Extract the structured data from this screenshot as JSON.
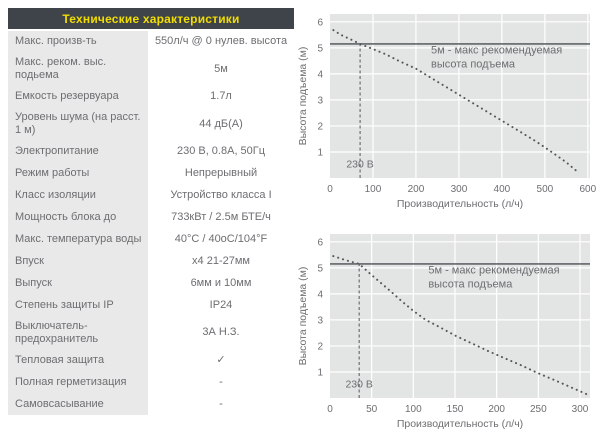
{
  "table": {
    "title": "Технические характеристики",
    "rows": [
      {
        "label": "Макс. произв-ть",
        "value": "550л/ч @ 0 нулев. высота"
      },
      {
        "label": "Макс. реком. выс. подьема",
        "value": "5м"
      },
      {
        "label": "Емкость резервуара",
        "value": "1.7л"
      },
      {
        "label": "Уровень шума (на расст. 1 м)",
        "value": "44 дБ(А)"
      },
      {
        "label": "Электропитание",
        "value": "230 В, 0.8А, 50Гц"
      },
      {
        "label": "Режим работы",
        "value": "Непрерывный"
      },
      {
        "label": "Класс изоляции",
        "value": "Устройство класса I"
      },
      {
        "label": "Мощность блока до",
        "value": "733кВт / 2.5м БТЕ/ч"
      },
      {
        "label": "Макс. температура воды",
        "value": "40°C / 40oC/104°F"
      },
      {
        "label": "Впуск",
        "value": "х4 21-27мм"
      },
      {
        "label": "Выпуск",
        "value": "6мм и 10мм"
      },
      {
        "label": "Степень защиты IP",
        "value": "IP24"
      },
      {
        "label": "Выключатель-предохранитель",
        "value": "3А Н.З."
      },
      {
        "label": "Тепловая защита",
        "value": "✓"
      },
      {
        "label": "Полная герметизация",
        "value": "-"
      },
      {
        "label": "Самовсасывание",
        "value": "-"
      }
    ]
  },
  "colors": {
    "header_bg": "#3f444a",
    "header_text": "#f2dd00",
    "label_bg": "#e9e9e9",
    "text": "#6d6e71",
    "plot_bg": "#e3e4e4",
    "grid": "#ffffff",
    "curve": "#55575b",
    "ref_line": "#4b4f54"
  },
  "chart_data": [
    {
      "type": "line",
      "line_style": "dotted",
      "title": "",
      "xlabel": "Производительность (л/ч)",
      "ylabel": "Высота подъема (м)",
      "xlim": [
        0,
        605
      ],
      "ylim": [
        0,
        6.3
      ],
      "xticks": [
        0,
        100,
        200,
        300,
        400,
        500,
        600
      ],
      "yticks": [
        1,
        2,
        3,
        4,
        5,
        6
      ],
      "grid": true,
      "legend": "none",
      "series": [
        {
          "name": "230 В",
          "points": [
            [
              8,
              5.68
            ],
            [
              25,
              5.5
            ],
            [
              45,
              5.35
            ],
            [
              70,
              5.15
            ],
            [
              100,
              4.95
            ],
            [
              130,
              4.75
            ],
            [
              160,
              4.5
            ],
            [
              200,
              4.2
            ],
            [
              240,
              3.8
            ],
            [
              280,
              3.4
            ],
            [
              320,
              3.0
            ],
            [
              360,
              2.6
            ],
            [
              400,
              2.2
            ],
            [
              440,
              1.8
            ],
            [
              480,
              1.4
            ],
            [
              520,
              0.95
            ],
            [
              550,
              0.6
            ],
            [
              580,
              0.18
            ]
          ]
        }
      ],
      "ref_line": {
        "y": 5.15,
        "annotation_lines": [
          "5м - макс рекомендуемая",
          "высота подъема"
        ],
        "annotation_pos": [
          235,
          4.78
        ]
      },
      "marker_line": {
        "x": 70,
        "label": "230 В",
        "label_y": 0.4
      }
    },
    {
      "type": "line",
      "line_style": "dotted",
      "title": "",
      "xlabel": "Производительность (л/ч)",
      "ylabel": "Высота подъема (м)",
      "xlim": [
        0,
        312
      ],
      "ylim": [
        0,
        6.3
      ],
      "xticks": [
        0,
        50,
        100,
        150,
        200,
        250,
        300
      ],
      "yticks": [
        1,
        2,
        3,
        4,
        5,
        6
      ],
      "grid": true,
      "legend": "none",
      "series": [
        {
          "name": "230 В",
          "points": [
            [
              4,
              5.45
            ],
            [
              18,
              5.3
            ],
            [
              35,
              5.15
            ],
            [
              48,
              4.78
            ],
            [
              60,
              4.45
            ],
            [
              72,
              4.12
            ],
            [
              85,
              3.75
            ],
            [
              100,
              3.35
            ],
            [
              115,
              3.0
            ],
            [
              130,
              2.75
            ],
            [
              150,
              2.4
            ],
            [
              170,
              2.1
            ],
            [
              190,
              1.8
            ],
            [
              210,
              1.52
            ],
            [
              230,
              1.25
            ],
            [
              250,
              0.95
            ],
            [
              270,
              0.68
            ],
            [
              290,
              0.4
            ],
            [
              310,
              0.12
            ]
          ]
        }
      ],
      "ref_line": {
        "y": 5.15,
        "annotation_lines": [
          "5м - макс рекомендуемая",
          "высота подъема"
        ],
        "annotation_pos": [
          118,
          4.78
        ]
      },
      "marker_line": {
        "x": 35,
        "label": "230 В",
        "label_y": 0.4
      }
    }
  ]
}
